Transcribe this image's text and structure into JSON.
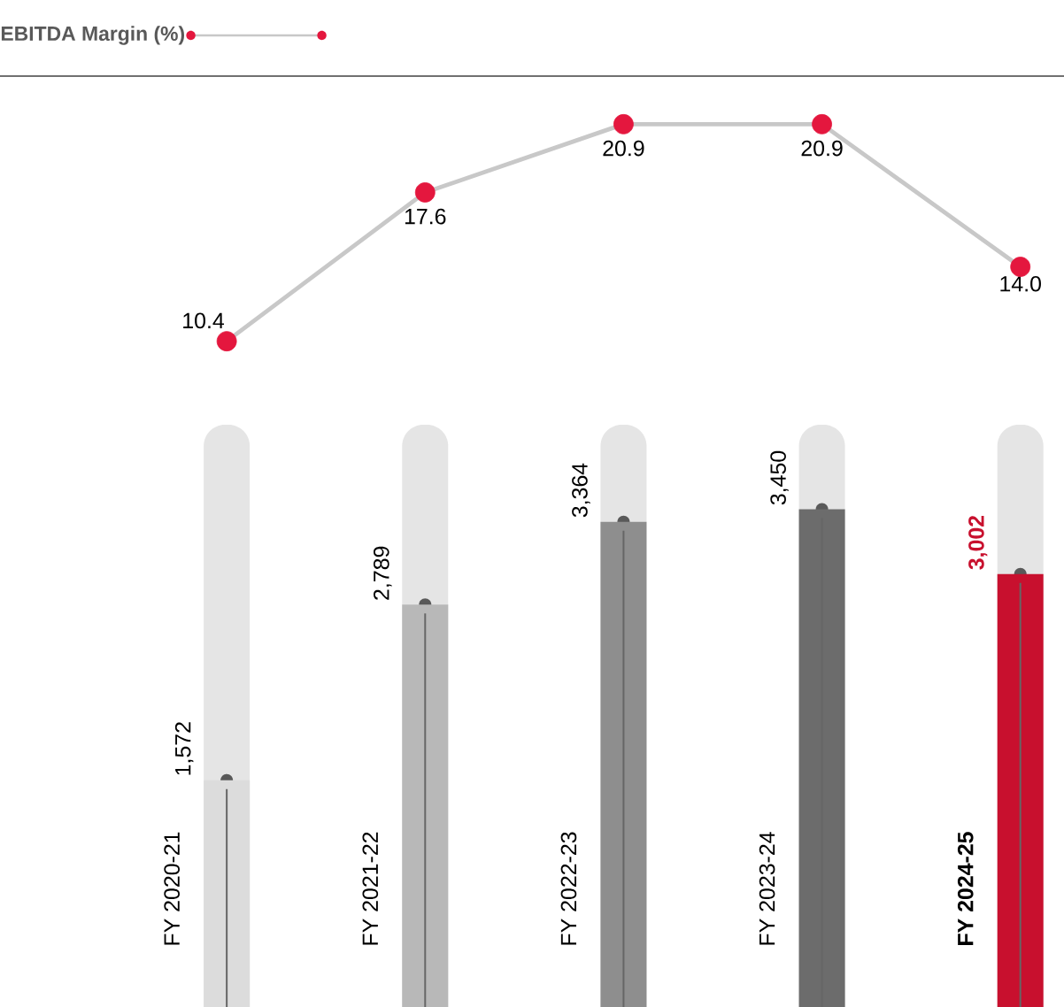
{
  "chart_data": [
    {
      "type": "line",
      "title": "EBITDA Margin (%)",
      "categories": [
        null,
        null,
        null,
        null,
        null
      ],
      "series": [
        {
          "color": "#c8c8c8",
          "values": [
            10.4,
            17.6,
            20.9,
            20.9,
            14.0
          ],
          "value_labels": [
            "10.4",
            "17.6",
            "20.9",
            "20.9",
            "14.0"
          ]
        }
      ],
      "marker": "circle"
    },
    {
      "type": "bar",
      "categories": [
        "FY 2020-21",
        "FY 2021-22",
        "FY 2022-23",
        "FY 2023-24",
        "FY 2024-25"
      ],
      "values": [
        1572,
        2789,
        3364,
        3450,
        3002
      ],
      "colors": [
        "#dcdcdc",
        "#b8b8b8",
        "#8e8e8e",
        "#6c6c6c",
        "#c8102e"
      ],
      "value_labels": [
        "1,572",
        "2,789",
        "3,364",
        "3,450",
        "3,002"
      ]
    }
  ]
}
